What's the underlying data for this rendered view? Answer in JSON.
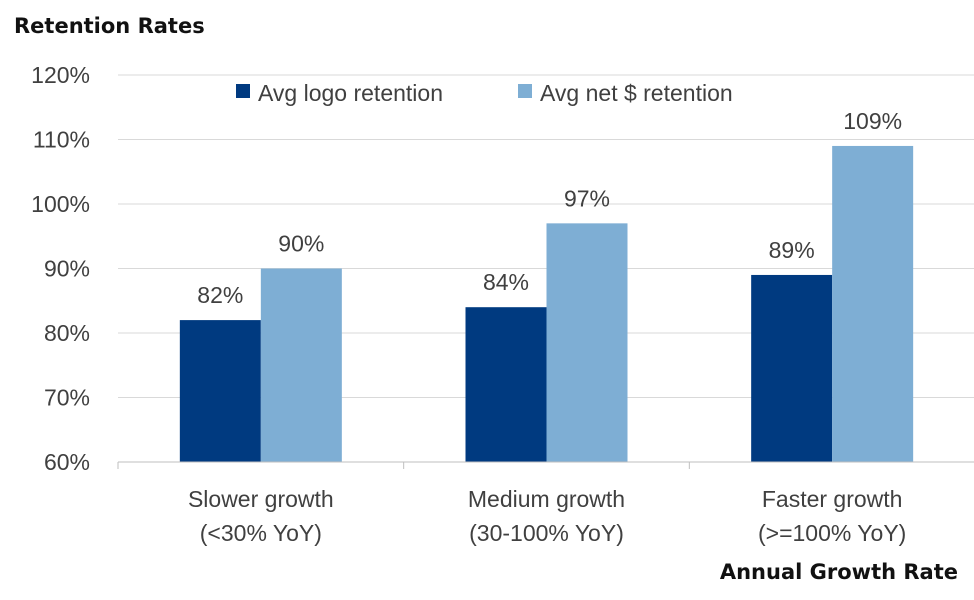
{
  "chart_data": {
    "type": "bar",
    "title": "Retention Rates",
    "xlabel": "Annual Growth Rate",
    "ylabel": "",
    "ylim": [
      60,
      120
    ],
    "yticks": [
      60,
      70,
      80,
      90,
      100,
      110,
      120
    ],
    "ytick_labels": [
      "60%",
      "70%",
      "80%",
      "90%",
      "100%",
      "110%",
      "120%"
    ],
    "grid": true,
    "legend_position": "top-center",
    "categories": [
      [
        "Slower growth",
        "(<30% YoY)"
      ],
      [
        "Medium growth",
        "(30-100% YoY)"
      ],
      [
        "Faster growth",
        "(>=100% YoY)"
      ]
    ],
    "series": [
      {
        "name": "Avg logo retention",
        "color": "#003A80",
        "values": [
          82,
          84,
          89
        ],
        "labels": [
          "82%",
          "84%",
          "89%"
        ]
      },
      {
        "name": "Avg net $ retention",
        "color": "#7EAED4",
        "values": [
          90,
          97,
          109
        ],
        "labels": [
          "90%",
          "97%",
          "109%"
        ]
      }
    ]
  }
}
